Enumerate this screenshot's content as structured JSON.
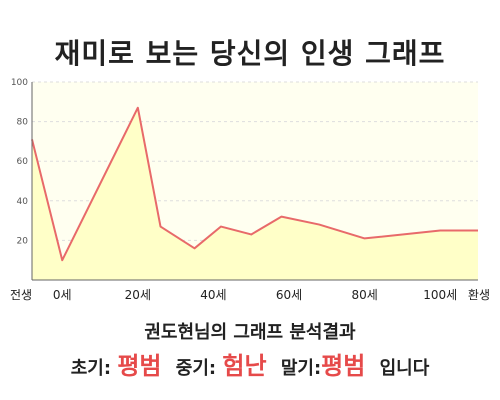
{
  "title": "재미로 보는 당신의 인생 그래프",
  "summary": "권도현님의 그래프 분석결과",
  "result": {
    "early_label": "초기:",
    "early_value": "평범",
    "mid_label": "중기:",
    "mid_value": "험난",
    "late_label": "말기:",
    "late_value": "평범",
    "ending": "입니다"
  },
  "colors": {
    "line": "#e86a6a",
    "fill": "#ffffc8",
    "plot_bg": "#fffff0",
    "highlight": "#e64a4a"
  },
  "chart_data": {
    "type": "area",
    "title": "",
    "xlabel": "",
    "ylabel": "",
    "ylim": [
      0,
      100
    ],
    "yticks": [
      20,
      40,
      60,
      80,
      100
    ],
    "xlim": [
      -8,
      110
    ],
    "xticks": [
      {
        "x": -8,
        "label": "전생"
      },
      {
        "x": 0,
        "label": "0세"
      },
      {
        "x": 20,
        "label": "20세"
      },
      {
        "x": 40,
        "label": "40세"
      },
      {
        "x": 60,
        "label": "60세"
      },
      {
        "x": 80,
        "label": "80세"
      },
      {
        "x": 100,
        "label": "100세"
      },
      {
        "x": 110,
        "label": "환생"
      }
    ],
    "grid": true,
    "series": [
      {
        "x": [
          -8,
          0,
          20,
          26,
          35,
          42,
          50,
          58,
          68,
          80,
          100,
          110
        ],
        "y": [
          71,
          10,
          87,
          27,
          16,
          27,
          23,
          32,
          28,
          21,
          25,
          25
        ]
      }
    ]
  }
}
